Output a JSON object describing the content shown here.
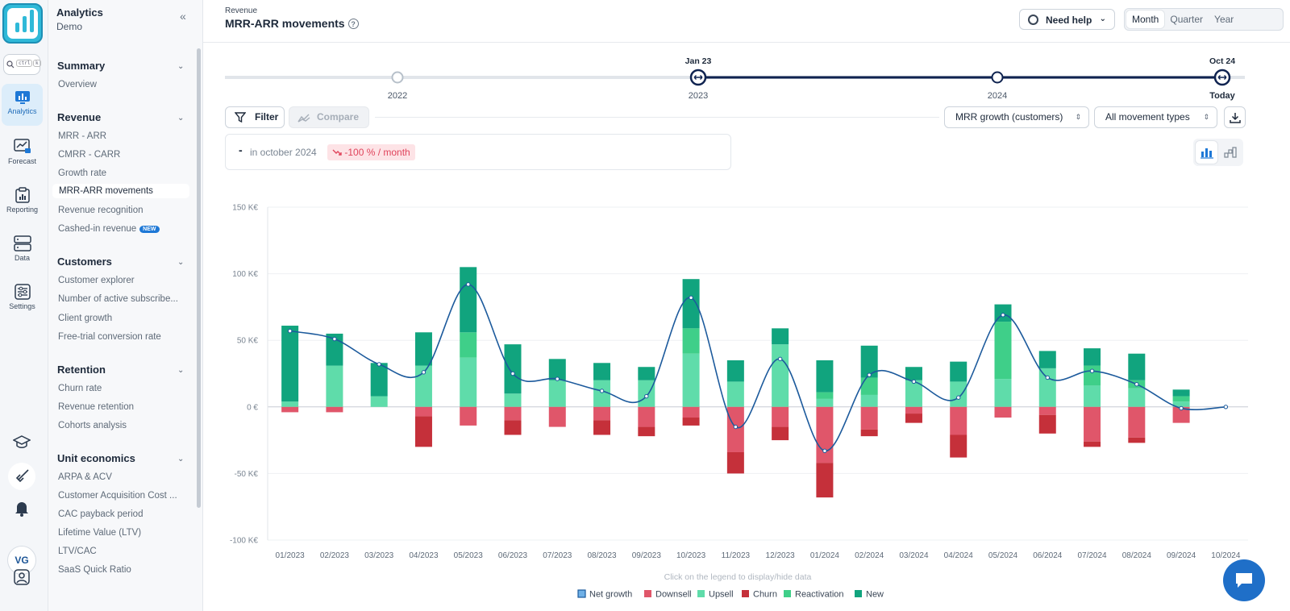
{
  "rail": {
    "search_kbd": [
      "ctrl",
      "k"
    ],
    "items": [
      {
        "label": "Analytics",
        "icon": "bar-chart-icon",
        "active": true
      },
      {
        "label": "Forecast",
        "icon": "forecast-icon",
        "active": false
      },
      {
        "label": "Reporting",
        "icon": "clipboard-icon",
        "active": false
      },
      {
        "label": "Data",
        "icon": "database-icon",
        "active": false
      },
      {
        "label": "Settings",
        "icon": "sliders-icon",
        "active": false
      }
    ],
    "avatar_initials": "VG"
  },
  "sidebar": {
    "title": "Analytics",
    "subtitle": "Demo",
    "sections": [
      {
        "label": "Summary",
        "items": [
          "Overview"
        ]
      },
      {
        "label": "Revenue",
        "items": [
          "MRR - ARR",
          "CMRR - CARR",
          "Growth rate",
          "MRR-ARR movements",
          "Revenue recognition",
          "Cashed-in revenue"
        ]
      },
      {
        "label": "Customers",
        "items": [
          "Customer explorer",
          "Number of active subscribe...",
          "Client growth",
          "Free-trial conversion rate"
        ]
      },
      {
        "label": "Retention",
        "items": [
          "Churn rate",
          "Revenue retention",
          "Cohorts analysis"
        ]
      },
      {
        "label": "Unit economics",
        "items": [
          "ARPA & ACV",
          "Customer Acquisition Cost ...",
          "CAC payback period",
          "Lifetime Value (LTV)",
          "LTV/CAC",
          "SaaS Quick Ratio"
        ]
      }
    ],
    "active_item": "MRR-ARR movements",
    "new_badge": "NEW"
  },
  "header": {
    "breadcrumb": "Revenue",
    "title": "MRR-ARR movements",
    "help_label": "Need help",
    "periods": [
      "Month",
      "Quarter",
      "Year"
    ],
    "active_period": "Month"
  },
  "timeline": {
    "start_label": "Jan 23",
    "end_label": "Oct 24",
    "years": [
      "2022",
      "2023",
      "2024",
      "Today"
    ]
  },
  "toolbar": {
    "filter_label": "Filter",
    "compare_label": "Compare",
    "metric_select": "MRR growth (customers)",
    "movement_select": "All movement types"
  },
  "kpi": {
    "value": "-",
    "period_text": "in october 2024",
    "change_badge": "-100 % / month"
  },
  "chart_data": {
    "type": "bar",
    "stacked": true,
    "categories": [
      "01/2023",
      "02/2023",
      "03/2023",
      "04/2023",
      "05/2023",
      "06/2023",
      "07/2023",
      "08/2023",
      "09/2023",
      "10/2023",
      "11/2023",
      "12/2023",
      "01/2024",
      "02/2024",
      "03/2024",
      "04/2024",
      "05/2024",
      "06/2024",
      "07/2024",
      "08/2024",
      "09/2024",
      "10/2024"
    ],
    "y_ticks": [
      "-100 K€",
      "-50 K€",
      "0 €",
      "50 K€",
      "100 K€",
      "150 K€"
    ],
    "ylim": [
      -100,
      150
    ],
    "units": "K€",
    "series": [
      {
        "name": "Net growth",
        "kind": "line",
        "color": "#1c5a9c",
        "values": [
          57,
          51,
          32,
          26,
          92,
          25,
          21,
          12,
          8,
          82,
          -15,
          36,
          -33,
          24,
          19,
          7,
          69,
          22,
          27,
          17,
          -1,
          0
        ]
      },
      {
        "name": "Downsell",
        "kind": "bar",
        "color": "#e0566a",
        "values": [
          -4,
          -4,
          0,
          -7,
          -14,
          -10,
          -15,
          -10,
          -15,
          -8,
          -34,
          -15,
          -42,
          -17,
          -5,
          -21,
          -8,
          -6,
          -26,
          -23,
          -12,
          0
        ]
      },
      {
        "name": "Upsell",
        "kind": "bar",
        "color": "#5fdcaa",
        "values": [
          4,
          31,
          8,
          31,
          37,
          10,
          20,
          20,
          20,
          40,
          19,
          47,
          6,
          9,
          20,
          19,
          21,
          29,
          16,
          14,
          4,
          0
        ]
      },
      {
        "name": "Churn",
        "kind": "bar",
        "color": "#c5303a",
        "values": [
          0,
          0,
          0,
          -23,
          0,
          -11,
          0,
          -11,
          -7,
          -6,
          -16,
          -10,
          -26,
          -5,
          -7,
          -17,
          0,
          -14,
          -4,
          -4,
          0,
          0
        ]
      },
      {
        "name": "Reactivation",
        "kind": "bar",
        "color": "#3fcf89",
        "values": [
          0,
          0,
          0,
          0,
          19,
          0,
          0,
          0,
          0,
          19,
          0,
          0,
          5,
          13,
          0,
          0,
          43,
          0,
          15,
          6,
          4,
          0
        ]
      },
      {
        "name": "New",
        "kind": "bar",
        "color": "#11a47e",
        "values": [
          57,
          24,
          25,
          25,
          49,
          37,
          16,
          13,
          10,
          37,
          16,
          12,
          24,
          24,
          10,
          15,
          13,
          13,
          13,
          20,
          5,
          0
        ]
      }
    ],
    "legend_hint": "Click on the legend to display/hide data",
    "legend_position": "bottom"
  }
}
